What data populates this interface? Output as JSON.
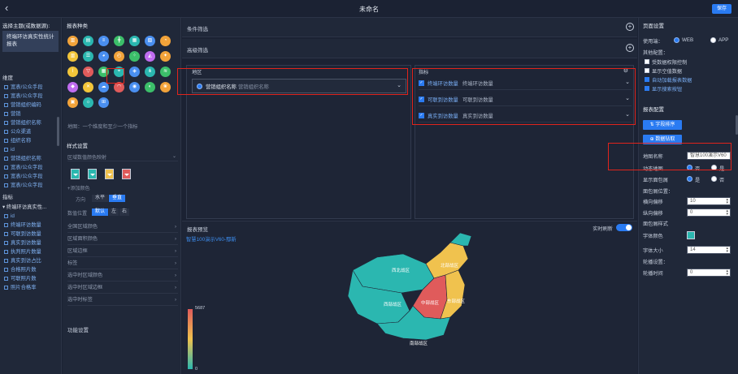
{
  "topbar": {
    "back_icon": "‹",
    "title": "未命名",
    "save_label": "保存"
  },
  "col1": {
    "subject_title": "选择主题(或数据源):",
    "subject_name": "终端环访真实性统计报表",
    "dim_header": "维度",
    "dims": [
      "宽表/公众手段",
      "宽表/公众字段",
      "营销组织编码",
      "营销",
      "营销组织名称",
      "公众渠道",
      "组织名称",
      "id",
      "营销组织名称",
      "宽表/公众字段",
      "宽表/公众字段",
      "宽表/公众字段"
    ],
    "metric_header": "指标",
    "metric_group": "终端环访真实性...",
    "metrics": [
      "id",
      "终端环访数量",
      "可联到访数量",
      "真实到访数量",
      "执判照片数量",
      "真实到访占比",
      "合格照片数",
      "可联照片数",
      "照片合格率"
    ]
  },
  "col2": {
    "title": "报表种类",
    "hint": "地图：一个维度和至少一个指标",
    "style_title": "样式设置",
    "style_sub": "区域数值颜色映射",
    "add_color": "+添加颜色",
    "direction_label": "方向",
    "dir_options": [
      "水平",
      "垂直"
    ],
    "data_label": "数值位置",
    "pos_options": [
      "默认",
      "左",
      "右"
    ],
    "options": [
      "全国区域颜色",
      "区域面积颜色",
      "区域边框",
      "标签",
      "选中时区域颜色",
      "选中时区域边框",
      "选中时标签"
    ],
    "func_title": "功能设置",
    "swatch_colors": [
      "#2bb7b0",
      "#2bb7b0",
      "#f0c24e",
      "#e05b5b"
    ],
    "chart_icons": [
      {
        "name": "bar-chart-icon",
        "color": "#f2a33a",
        "glyph": "▥"
      },
      {
        "name": "stacked-bar-icon",
        "color": "#2bb7b0",
        "glyph": "▤"
      },
      {
        "name": "horizontal-bar-icon",
        "color": "#4a8ff0",
        "glyph": "≡"
      },
      {
        "name": "cross-bar-icon",
        "color": "#3cbf6a",
        "glyph": "╋"
      },
      {
        "name": "grouped-bar-icon",
        "color": "#2bb7b0",
        "glyph": "▦"
      },
      {
        "name": "bar-line-icon",
        "color": "#4a8ff0",
        "glyph": "▧"
      },
      {
        "name": "pie-chart-icon",
        "color": "#f2a33a",
        "glyph": "◔"
      },
      {
        "name": "column-chart-icon",
        "color": "#f2c53a",
        "glyph": "▥"
      },
      {
        "name": "list-chart-icon",
        "color": "#2bb7b0",
        "glyph": "☰"
      },
      {
        "name": "donut-chart-icon",
        "color": "#4a8ff0",
        "glyph": "◕"
      },
      {
        "name": "gauge-chart-icon",
        "color": "#f2a33a",
        "glyph": "◴"
      },
      {
        "name": "scatter-chart-icon",
        "color": "#3cbf6a",
        "glyph": "⁘"
      },
      {
        "name": "area-chart-icon",
        "color": "#c06cf0",
        "glyph": "◭"
      },
      {
        "name": "radar-chart-icon",
        "color": "#f2a33a",
        "glyph": "✦"
      },
      {
        "name": "line-chart-icon",
        "color": "#f2c53a",
        "glyph": "⌇"
      },
      {
        "name": "funnel-chart-icon",
        "color": "#e05b5b",
        "glyph": "▽"
      },
      {
        "name": "table-chart-icon",
        "color": "#3cbf6a",
        "glyph": "▦"
      },
      {
        "name": "map-chart-icon",
        "color": "#2bb7b0",
        "glyph": "⌖"
      },
      {
        "name": "heatmap-chart-icon",
        "color": "#4a8ff0",
        "glyph": "◈"
      },
      {
        "name": "tree-chart-icon",
        "color": "#2bb7b0",
        "glyph": "⋔"
      },
      {
        "name": "sankey-chart-icon",
        "color": "#3cbf6a",
        "glyph": "≋"
      },
      {
        "name": "card-chart-icon",
        "color": "#c06cf0",
        "glyph": "◆"
      },
      {
        "name": "box-chart-icon",
        "color": "#f2c53a",
        "glyph": "✕"
      },
      {
        "name": "wordcloud-chart-icon",
        "color": "#4a8ff0",
        "glyph": "☁"
      },
      {
        "name": "progress-chart-icon",
        "color": "#e05b5b",
        "glyph": "◠"
      },
      {
        "name": "liquid-chart-icon",
        "color": "#4a8ff0",
        "glyph": "◉"
      },
      {
        "name": "polar-chart-icon",
        "color": "#3cbf6a",
        "glyph": "◐"
      },
      {
        "name": "rose-chart-icon",
        "color": "#f2a33a",
        "glyph": "❀"
      },
      {
        "name": "calendar-chart-icon",
        "color": "#f2a33a",
        "glyph": "▣"
      },
      {
        "name": "sunburst-chart-icon",
        "color": "#2bb7b0",
        "glyph": "☼"
      },
      {
        "name": "kline-chart-icon",
        "color": "#4a8ff0",
        "glyph": "⊞"
      }
    ]
  },
  "main": {
    "condition_filter": "条件筛选",
    "advanced_filter": "高级筛选",
    "dim_label": "地区",
    "dim_item_name": "营销组织名称",
    "dim_item_alias": "营销组织名称",
    "metric_label": "指标",
    "metrics": [
      {
        "name": "终端环访数量",
        "alias": "终端环访数量"
      },
      {
        "name": "可联到访数量",
        "alias": "可联到访数量"
      },
      {
        "name": "真实到访数量",
        "alias": "真实到访数量"
      }
    ],
    "preview_label": "报表预览",
    "realtime_refresh": "实时刷新",
    "map_title": "智慧100演示V60-鄢新",
    "legend_max": "5687",
    "legend_min": "0",
    "regions": [
      "西北战区",
      "北部战区",
      "中部战区",
      "西部战区",
      "东部战区",
      "南部战区"
    ]
  },
  "right": {
    "page_settings": "页面设置",
    "usage_label": "使用端：",
    "web": "WEB",
    "app": "APP",
    "other_config": "其他配置：",
    "checks": [
      {
        "label": "受数据权限控制",
        "on": false
      },
      {
        "label": "显示空值数据",
        "on": false
      },
      {
        "label": "自动加载报表数据",
        "on": true
      },
      {
        "label": "显示搜索按钮",
        "on": true
      }
    ],
    "report_config": "报表配置",
    "btn_sort": "字段排序",
    "btn_drill": "数据钻取",
    "map_name_label": "地图名称",
    "map_name_value": "智慧100演示V60",
    "dynamic_map_label": "动态地图",
    "no": "否",
    "yes": "是",
    "show_bubble_label": "显示面包屑",
    "bubble_pos_label": "面包屑位置：",
    "h_offset_label": "横向偏移",
    "h_offset_value": "10",
    "v_offset_label": "纵向偏移",
    "v_offset_value": "0",
    "bubble_style_label": "面包屑样式",
    "font_color_label": "字体颜色",
    "font_size_label": "字体大小",
    "font_size_value": "14",
    "carousel_label": "轮播设置：",
    "carousel_time_label": "轮播时间",
    "carousel_time_value": "0"
  }
}
